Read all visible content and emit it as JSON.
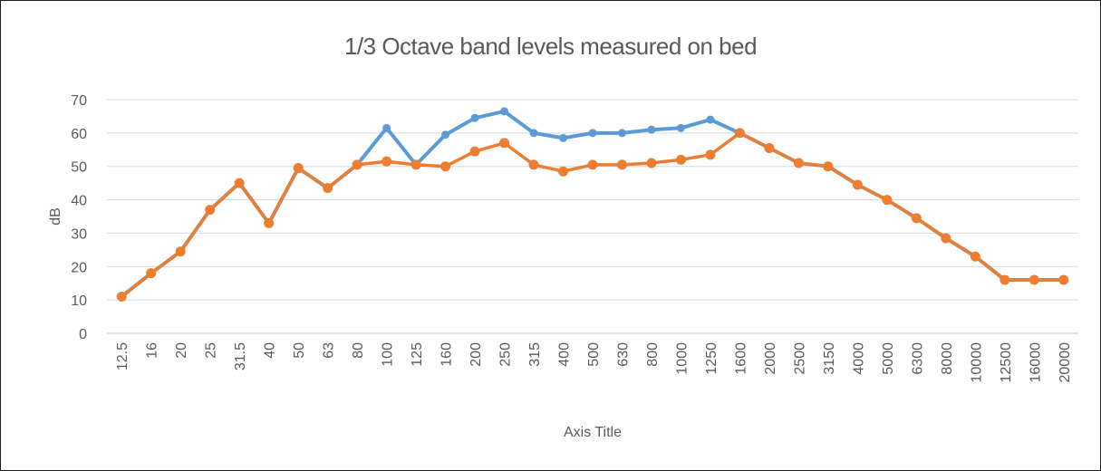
{
  "chart_data": {
    "type": "line",
    "title": "1/3 Octave band levels measured on  bed",
    "xlabel": "Axis Title",
    "ylabel": "dB",
    "ylim": [
      0,
      70
    ],
    "yticks": [
      0,
      10,
      20,
      30,
      40,
      50,
      60,
      70
    ],
    "grid": true,
    "categories": [
      "12.5",
      "16",
      "20",
      "25",
      "31.5",
      "40",
      "50",
      "63",
      "80",
      "100",
      "125",
      "160",
      "200",
      "250",
      "315",
      "400",
      "500",
      "630",
      "800",
      "1000",
      "1250",
      "1600",
      "2000",
      "2500",
      "3150",
      "4000",
      "5000",
      "6300",
      "8000",
      "10000",
      "12500",
      "16000",
      "20000"
    ],
    "series": [
      {
        "color": "#5B9BD5",
        "values": [
          11,
          18,
          24.5,
          37,
          45,
          33,
          49.5,
          43.5,
          50.5,
          61.5,
          50.5,
          59.5,
          64.5,
          66.5,
          60,
          58.5,
          60,
          60,
          61,
          61.5,
          64,
          60,
          55.5,
          51,
          50,
          44.5,
          40,
          34.5,
          28.5,
          23,
          16,
          16,
          16
        ]
      },
      {
        "color": "#ED7D31",
        "values": [
          11,
          18,
          24.5,
          37,
          45,
          33,
          49.5,
          43.5,
          50.5,
          51.5,
          50.5,
          50,
          54.5,
          57,
          50.5,
          48.5,
          50.5,
          50.5,
          51,
          52,
          53.5,
          60,
          55.5,
          51,
          50,
          44.5,
          40,
          34.5,
          28.5,
          23,
          16,
          16,
          16
        ]
      }
    ]
  }
}
